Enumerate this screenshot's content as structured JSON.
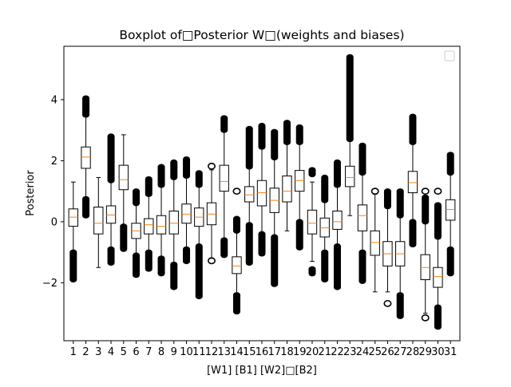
{
  "chart_data": {
    "type": "box",
    "title": "Boxplot of□Posterior W□(weights and biases)",
    "xlabel": "[W1] [B1] [W2]□[B2]",
    "ylabel": "Posterior",
    "ylim": [
      -3.9,
      5.75
    ],
    "yticks": [
      -2,
      0,
      2,
      4
    ],
    "legend": {
      "placement": "top-right",
      "entries": []
    },
    "grid": false,
    "colors": {
      "box": "#000000",
      "median": "#ff7f0e",
      "flier": "#000000"
    },
    "categories": [
      "1",
      "2",
      "3",
      "4",
      "5",
      "6",
      "7",
      "8",
      "9",
      "10",
      "11",
      "12",
      "13",
      "14",
      "15",
      "16",
      "17",
      "18",
      "19",
      "20",
      "21",
      "22",
      "23",
      "24",
      "25",
      "26",
      "27",
      "28",
      "29",
      "30",
      "31"
    ],
    "boxes": [
      {
        "q1": -0.15,
        "median": 0.15,
        "q3": 0.42,
        "whislo": -1.0,
        "whishi": 1.3,
        "fliers_low": [
          -1.0,
          -1.9
        ],
        "fliers_high": []
      },
      {
        "q1": 1.75,
        "median": 2.12,
        "q3": 2.45,
        "whislo": 0.75,
        "whishi": 3.5,
        "fliers_low": [
          0.75,
          0.2
        ],
        "fliers_high": [
          3.5,
          4.05
        ]
      },
      {
        "q1": -0.4,
        "median": -0.05,
        "q3": 0.48,
        "whislo": -1.5,
        "whishi": 1.45,
        "fliers_low": [],
        "fliers_high": []
      },
      {
        "q1": -0.05,
        "median": 0.22,
        "q3": 0.52,
        "whislo": -0.9,
        "whishi": 1.35,
        "fliers_low": [
          -0.9,
          -1.35
        ],
        "fliers_high": [
          1.35,
          2.8
        ]
      },
      {
        "q1": 1.05,
        "median": 1.38,
        "q3": 1.85,
        "whislo": -0.15,
        "whishi": 2.85,
        "fliers_low": [
          -0.15,
          -0.9
        ],
        "fliers_high": []
      },
      {
        "q1": -0.55,
        "median": -0.3,
        "q3": -0.05,
        "whislo": -1.1,
        "whishi": 0.6,
        "fliers_low": [
          -1.1,
          -1.75
        ],
        "fliers_high": [
          0.6,
          1.0
        ]
      },
      {
        "q1": -0.4,
        "median": -0.1,
        "q3": 0.1,
        "whislo": -1.0,
        "whishi": 0.9,
        "fliers_low": [
          -1.0,
          -1.55
        ],
        "fliers_high": [
          0.9,
          1.4
        ]
      },
      {
        "q1": -0.4,
        "median": -0.15,
        "q3": 0.2,
        "whislo": -1.2,
        "whishi": 1.2,
        "fliers_low": [
          -1.2,
          -1.7
        ],
        "fliers_high": [
          1.2,
          1.8
        ]
      },
      {
        "q1": -0.4,
        "median": -0.05,
        "q3": 0.35,
        "whislo": -1.4,
        "whishi": 1.45,
        "fliers_low": [
          -1.4,
          -2.15
        ],
        "fliers_high": [
          1.45,
          1.95
        ]
      },
      {
        "q1": -0.05,
        "median": 0.25,
        "q3": 0.58,
        "whislo": -0.9,
        "whishi": 1.5,
        "fliers_low": [
          -0.9,
          -1.3
        ],
        "fliers_high": [
          1.5,
          2.05
        ]
      },
      {
        "q1": -0.15,
        "median": 0.15,
        "q3": 0.45,
        "whislo": -0.8,
        "whishi": 1.2,
        "fliers_low": [
          -0.8,
          -2.45
        ],
        "fliers_high": [
          1.2,
          1.6
        ]
      },
      {
        "q1": -0.1,
        "median": 0.25,
        "q3": 0.62,
        "whislo": -1.2,
        "whishi": 1.7,
        "fliers_low": [
          -1.28
        ],
        "fliers_high": [
          1.82
        ]
      },
      {
        "q1": 1.0,
        "median": 1.32,
        "q3": 1.85,
        "whislo": -0.6,
        "whishi": 3.0,
        "fliers_low": [
          -0.6,
          -1.1
        ],
        "fliers_high": [
          3.0,
          3.4
        ]
      },
      {
        "q1": -1.7,
        "median": -1.45,
        "q3": -1.15,
        "whislo": -2.4,
        "whishi": -0.3,
        "fliers_low": [
          -2.4,
          -2.95
        ],
        "fliers_high": [
          -0.3,
          0.1,
          1.0
        ]
      },
      {
        "q1": 0.65,
        "median": 0.88,
        "q3": 1.15,
        "whislo": -0.1,
        "whishi": 1.8,
        "fliers_low": [
          -0.1,
          -1.35
        ],
        "fliers_high": [
          1.8,
          3.05
        ]
      },
      {
        "q1": 0.52,
        "median": 0.95,
        "q3": 1.35,
        "whislo": -0.4,
        "whishi": 2.45,
        "fliers_low": [
          -0.4,
          -1.05
        ],
        "fliers_high": [
          2.45,
          3.15
        ]
      },
      {
        "q1": 0.3,
        "median": 0.7,
        "q3": 1.1,
        "whislo": -0.5,
        "whishi": 2.1,
        "fliers_low": [
          -0.5,
          -2.05
        ],
        "fliers_high": [
          2.1,
          2.95
        ]
      },
      {
        "q1": 0.65,
        "median": 1.0,
        "q3": 1.5,
        "whislo": -0.3,
        "whishi": 2.6,
        "fliers_low": [],
        "fliers_high": [
          2.6,
          3.25
        ]
      },
      {
        "q1": 1.0,
        "median": 1.35,
        "q3": 1.68,
        "whislo": 0.0,
        "whishi": 2.6,
        "fliers_low": [
          0.0,
          -0.85
        ],
        "fliers_high": [
          2.6,
          3.1
        ]
      },
      {
        "q1": -0.4,
        "median": -0.05,
        "q3": 0.38,
        "whislo": -1.3,
        "whishi": 1.3,
        "fliers_low": [
          -1.55,
          -1.7
        ],
        "fliers_high": [
          1.55,
          1.7
        ]
      },
      {
        "q1": -0.5,
        "median": -0.2,
        "q3": 0.12,
        "whislo": -1.0,
        "whishi": 0.7,
        "fliers_low": [
          -1.0,
          -1.9
        ],
        "fliers_high": [
          0.7,
          1.45
        ]
      },
      {
        "q1": -0.25,
        "median": 0.0,
        "q3": 0.35,
        "whislo": -0.8,
        "whishi": 1.2,
        "fliers_low": [
          -0.8,
          -2.15
        ],
        "fliers_high": [
          1.2,
          1.95
        ]
      },
      {
        "q1": 1.15,
        "median": 1.45,
        "q3": 1.82,
        "whislo": 0.2,
        "whishi": 2.7,
        "fliers_low": [],
        "fliers_high": [
          2.7,
          5.4
        ]
      },
      {
        "q1": -0.3,
        "median": 0.2,
        "q3": 0.55,
        "whislo": -1.0,
        "whishi": 1.6,
        "fliers_low": [
          -1.0,
          -1.95
        ],
        "fliers_high": [
          1.6,
          2.5
        ]
      },
      {
        "q1": -1.1,
        "median": -0.68,
        "q3": -0.3,
        "whislo": -2.3,
        "whishi": 0.9,
        "fliers_low": [],
        "fliers_high": [
          1.0
        ]
      },
      {
        "q1": -1.45,
        "median": -1.05,
        "q3": -0.65,
        "whislo": -2.3,
        "whishi": 0.5,
        "fliers_low": [
          -2.68
        ],
        "fliers_high": [
          0.5,
          1.0
        ]
      },
      {
        "q1": -1.45,
        "median": -1.05,
        "q3": -0.65,
        "whislo": -2.4,
        "whishi": 0.2,
        "fliers_low": [
          -2.4,
          -3.1
        ],
        "fliers_high": [
          0.2,
          1.0
        ]
      },
      {
        "q1": 0.95,
        "median": 1.28,
        "q3": 1.65,
        "whislo": 0.0,
        "whishi": 2.6,
        "fliers_low": [
          0.0,
          -0.75
        ],
        "fliers_high": [
          2.6,
          3.45
        ]
      },
      {
        "q1": -1.9,
        "median": -1.5,
        "q3": -1.08,
        "whislo": -3.0,
        "whishi": 0.0,
        "fliers_low": [
          -3.15
        ],
        "fliers_high": [
          0.0,
          0.8,
          1.0
        ]
      },
      {
        "q1": -2.15,
        "median": -1.8,
        "q3": -1.5,
        "whislo": -2.8,
        "whishi": -0.5,
        "fliers_low": [
          -2.8,
          -3.45
        ],
        "fliers_high": [
          -0.5,
          0.55,
          1.0
        ]
      },
      {
        "q1": 0.05,
        "median": 0.4,
        "q3": 0.72,
        "whislo": -0.9,
        "whishi": 1.6,
        "fliers_low": [
          -0.9,
          -1.7
        ],
        "fliers_high": [
          1.6,
          2.2
        ]
      }
    ]
  }
}
